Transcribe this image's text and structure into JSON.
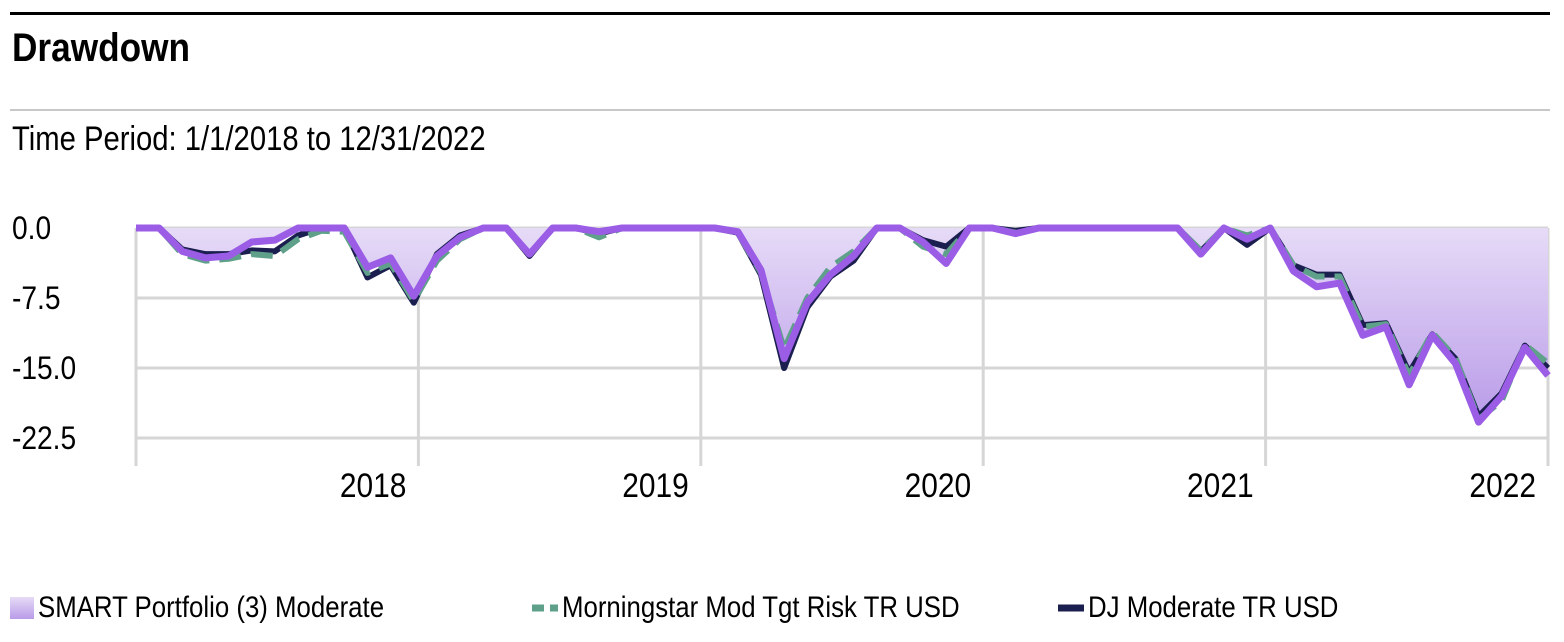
{
  "header": {
    "title": "Drawdown",
    "subtitle": "Time Period: 1/1/2018 to 12/31/2022"
  },
  "colors": {
    "portfolio": "#9b5de5",
    "portfolio_fill_top": "#e6dbf7",
    "portfolio_fill_bottom": "#b99be8",
    "morningstar": "#5fa08a",
    "dj": "#1b1f4f",
    "grid": "#d6d6d6"
  },
  "chart_data": {
    "type": "area",
    "yticks": [
      "0.0",
      "-7.5",
      "-15.0",
      "-22.5"
    ],
    "ytick_values": [
      0,
      -7.5,
      -15,
      -22.5
    ],
    "ylim": [
      -22.5,
      0
    ],
    "xticks": [
      "2018",
      "2019",
      "2020",
      "2021",
      "2022"
    ],
    "x_start_year": 2017,
    "x_end_year": 2022,
    "grid": true,
    "legend_position": "bottom",
    "series": [
      {
        "name": "SMART Portfolio (3) Moderate",
        "style": "area",
        "values": [
          0,
          0,
          -2.5,
          -3.2,
          -3.0,
          -1.5,
          -1.3,
          0,
          0,
          0,
          -4.2,
          -3.2,
          -7.3,
          -3.0,
          -1.0,
          0,
          0,
          -2.8,
          0,
          0,
          -0.4,
          0,
          0,
          0,
          0,
          0,
          -0.4,
          -4.5,
          -14.0,
          -8.0,
          -5.0,
          -3.0,
          0,
          0,
          -1.5,
          -3.8,
          0,
          0,
          -0.6,
          0,
          0,
          0,
          0,
          0,
          0,
          0,
          -2.8,
          0,
          -1.2,
          0,
          -4.6,
          -6.3,
          -5.9,
          -11.5,
          -10.6,
          -16.8,
          -11.5,
          -14.5,
          -20.8,
          -18.0,
          -12.8,
          -15.8
        ]
      },
      {
        "name": "Morningstar Mod Tgt Risk TR USD",
        "style": "dashed",
        "values": [
          0,
          0,
          -2.8,
          -3.5,
          -3.3,
          -2.8,
          -3.0,
          -1.2,
          -0.3,
          -0.4,
          -4.8,
          -3.8,
          -7.8,
          -3.5,
          -1.2,
          0,
          0,
          -2.9,
          0,
          0,
          -1.0,
          0,
          0,
          0,
          0,
          0,
          -0.5,
          -4.8,
          -13.0,
          -7.5,
          -4.2,
          -2.5,
          0,
          0,
          -2.0,
          -2.8,
          0,
          0,
          -0.5,
          0,
          0,
          0,
          0,
          0,
          0,
          0,
          -2.4,
          0,
          -0.8,
          0,
          -4.0,
          -5.2,
          -5.2,
          -10.6,
          -10.3,
          -15.8,
          -11.2,
          -13.9,
          -20.5,
          -18.5,
          -12.5,
          -14.5
        ]
      },
      {
        "name": "DJ Moderate TR USD",
        "style": "solid",
        "values": [
          0,
          0,
          -2.3,
          -2.8,
          -2.8,
          -2.4,
          -2.5,
          -0.8,
          0,
          0,
          -5.3,
          -4.0,
          -8.0,
          -2.8,
          -0.8,
          0,
          0,
          -3.0,
          0,
          0,
          -0.6,
          0,
          0,
          0,
          0,
          0,
          -0.5,
          -5.0,
          -15.0,
          -8.5,
          -5.2,
          -3.5,
          0,
          0,
          -1.3,
          -2.0,
          0,
          0,
          -0.3,
          0,
          0,
          0,
          0,
          0,
          0,
          0,
          -2.5,
          0,
          -1.8,
          0,
          -4.0,
          -5.0,
          -5.0,
          -10.4,
          -10.2,
          -15.5,
          -11.4,
          -14.0,
          -20.2,
          -17.7,
          -12.6,
          -15.0
        ]
      }
    ]
  }
}
